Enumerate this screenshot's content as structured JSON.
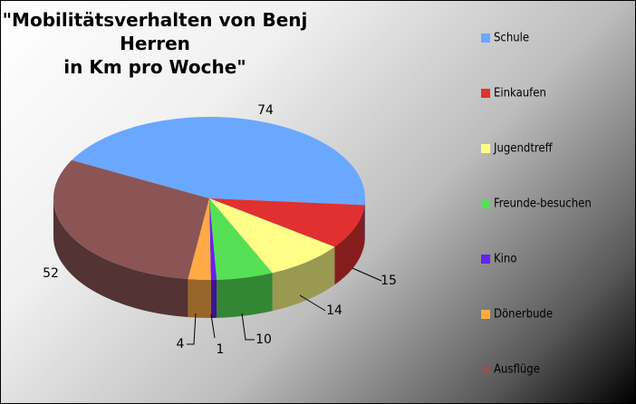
{
  "chart_data": {
    "type": "pie3d",
    "title": "\"Mobilitätsverhalten von Benj Herren\nin Km pro Woche\"",
    "categories": [
      "Schule",
      "Einkaufen",
      "Jugendtreff",
      "Freunde-besuchen",
      "Kino",
      "Dönerbude",
      "Ausflüge"
    ],
    "values": [
      74,
      15,
      14,
      10,
      1,
      4,
      52
    ],
    "colors": [
      "#6aa8ff",
      "#e03030",
      "#ffff88",
      "#55e055",
      "#6622ee",
      "#ffaa44",
      "#8b5555"
    ],
    "legend": "right"
  }
}
